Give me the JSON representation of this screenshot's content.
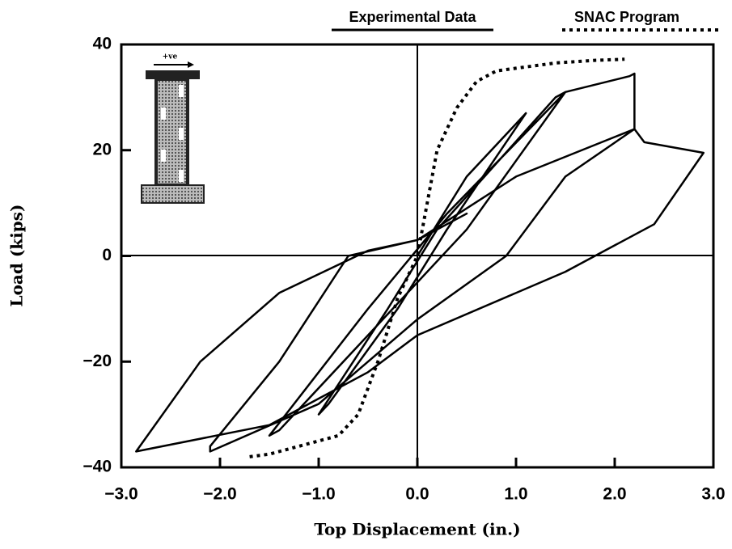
{
  "chart_data": {
    "type": "line",
    "x_label": "Top Displacement (in.)",
    "y_label": "Load (kips)",
    "inset_label": "+ve",
    "xlim": [
      -3,
      3
    ],
    "ylim": [
      -40,
      40
    ],
    "xticks": [
      {
        "value": -3,
        "label": "−3.0"
      },
      {
        "value": -2,
        "label": "−2.0"
      },
      {
        "value": -1,
        "label": "−1.0"
      },
      {
        "value": 0,
        "label": "0.0"
      },
      {
        "value": 1,
        "label": "1.0"
      },
      {
        "value": 2,
        "label": "2.0"
      },
      {
        "value": 3,
        "label": "3.0"
      }
    ],
    "yticks": [
      {
        "value": -40,
        "label": "−40"
      },
      {
        "value": -20,
        "label": "−20"
      },
      0,
      20,
      40
    ],
    "series": [
      {
        "name": "Experimental Data",
        "color": "#000000",
        "dash": "solid",
        "x": [
          0,
          0.5,
          1.0,
          1.1,
          0.3,
          -0.2,
          -0.9,
          -1.0,
          -0.3,
          0.2,
          1.4,
          1.5,
          0.5,
          -0.5,
          -1.4,
          -1.5,
          -0.5,
          0.3,
          1.5,
          2.15,
          2.2,
          2.2,
          1.5,
          0.9,
          0,
          -1.0,
          -2.1,
          -2.1,
          -1.4,
          -0.7,
          0,
          1.0,
          2.2,
          2.3,
          2.9,
          2.4,
          1.5,
          0,
          -0.5,
          -1.5,
          -2.85,
          -2.2,
          -1.4,
          -0.5,
          0,
          0.5
        ],
        "values": [
          0,
          15,
          25,
          27,
          5,
          -10,
          -28,
          -30,
          -10,
          5,
          30,
          31,
          5,
          -15,
          -33,
          -34,
          -10,
          8,
          31,
          34,
          34.5,
          24,
          15,
          0,
          -12,
          -28,
          -37,
          -36,
          -20,
          0,
          3,
          15,
          24,
          21.5,
          19.5,
          6,
          -3,
          -15,
          -22,
          -32,
          -37,
          -20,
          -7,
          1,
          3,
          8
        ]
      },
      {
        "name": "SNAC Program",
        "color": "#000000",
        "dash": "dotted",
        "x": [
          -1.7,
          -1.5,
          -1.2,
          -0.8,
          -0.6,
          -0.4,
          -0.2,
          0,
          0.1,
          0.2,
          0.4,
          0.6,
          0.8,
          1.0,
          1.4,
          1.8,
          2.1
        ],
        "values": [
          -38,
          -37.5,
          -36,
          -34,
          -30,
          -20,
          -8,
          0,
          10,
          20,
          28,
          33,
          35,
          35.5,
          36.5,
          37,
          37.2
        ]
      }
    ]
  }
}
